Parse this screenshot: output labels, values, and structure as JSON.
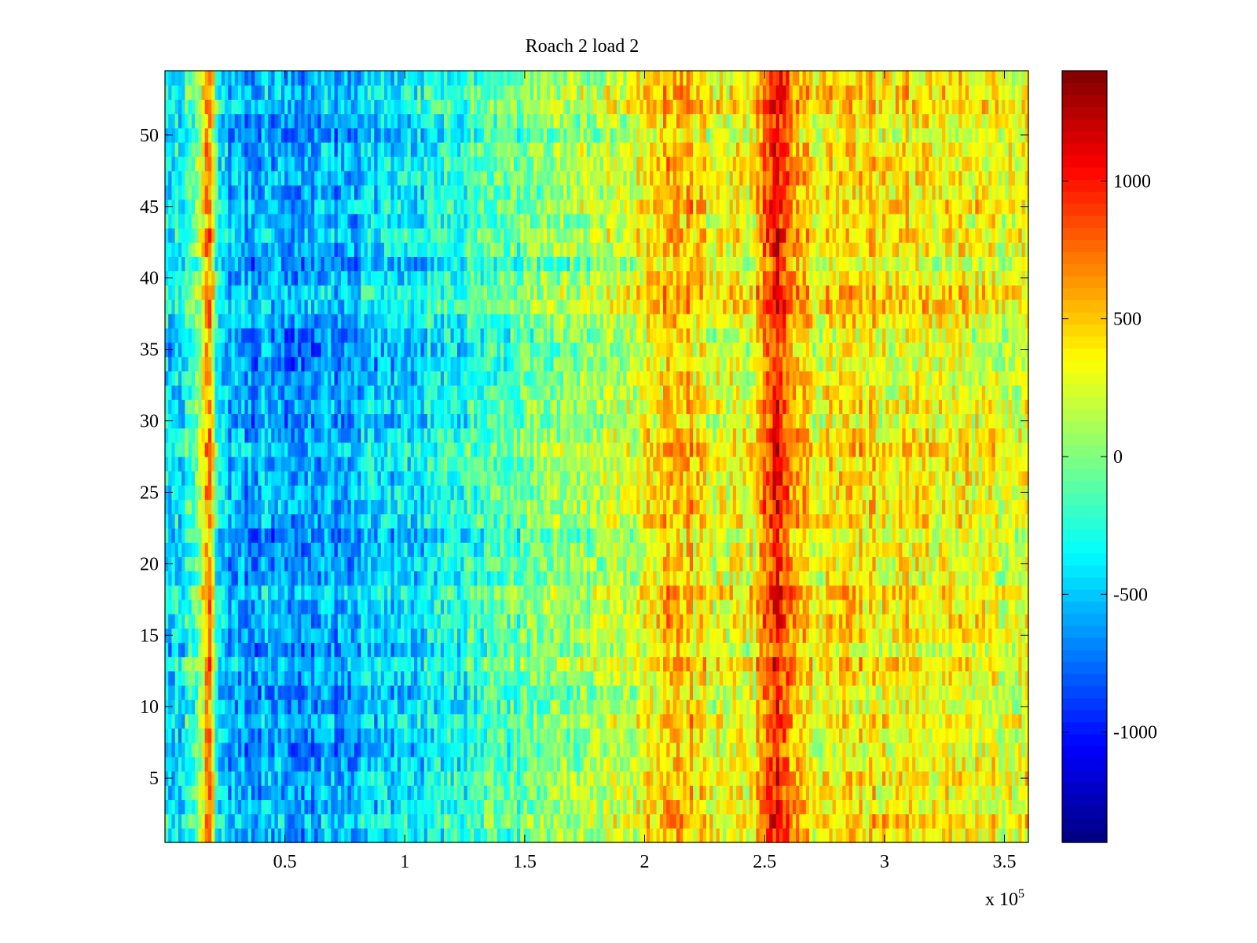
{
  "chart_data": {
    "type": "heatmap",
    "title": "Roach 2 load 2",
    "xlabel": "",
    "ylabel": "",
    "x_exponent_label": "x 10",
    "x_exponent_power": "5",
    "xlim": [
      0.0,
      3.6
    ],
    "ylim": [
      0.5,
      54.5
    ],
    "x_ticks": [
      0.5,
      1,
      1.5,
      2,
      2.5,
      3,
      3.5
    ],
    "x_tick_labels": [
      "0.5",
      "1",
      "1.5",
      "2",
      "2.5",
      "3",
      "3.5"
    ],
    "y_ticks": [
      5,
      10,
      15,
      20,
      25,
      30,
      35,
      40,
      45,
      50
    ],
    "y_tick_labels": [
      "5",
      "10",
      "15",
      "20",
      "25",
      "30",
      "35",
      "40",
      "45",
      "50"
    ],
    "rows": 54,
    "colormap": "jet",
    "clim": [
      -1400,
      1400
    ],
    "colorbar_ticks": [
      1000,
      500,
      0,
      -500,
      -1000
    ],
    "colorbar_tick_labels": [
      "1000",
      "500",
      "0",
      "-500",
      "-1000"
    ],
    "column_profile": {
      "x": [
        0.0,
        0.1,
        0.15,
        0.18,
        0.2,
        0.22,
        0.3,
        0.5,
        0.8,
        1.0,
        1.2,
        1.35,
        1.5,
        1.7,
        1.9,
        2.05,
        2.15,
        2.2,
        2.3,
        2.45,
        2.53,
        2.56,
        2.6,
        2.7,
        2.85,
        3.0,
        3.2,
        3.4,
        3.6
      ],
      "mean": [
        -450,
        -300,
        200,
        800,
        250,
        -500,
        -600,
        -600,
        -550,
        -450,
        -300,
        -150,
        -100,
        50,
        150,
        450,
        600,
        450,
        250,
        300,
        900,
        1000,
        650,
        350,
        400,
        380,
        350,
        300,
        250
      ]
    }
  }
}
